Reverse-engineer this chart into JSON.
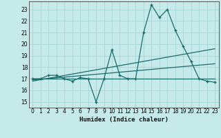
{
  "xlabel": "Humidex (Indice chaleur)",
  "ylabel": "",
  "bg_color": "#c6eaea",
  "line_color": "#1a6b6b",
  "grid_color": "#a8d4d4",
  "xlim": [
    -0.5,
    23.5
  ],
  "ylim": [
    14.5,
    23.7
  ],
  "xticks": [
    0,
    1,
    2,
    3,
    4,
    5,
    6,
    7,
    8,
    9,
    10,
    11,
    12,
    13,
    14,
    15,
    16,
    17,
    18,
    19,
    20,
    21,
    22,
    23
  ],
  "yticks": [
    15,
    16,
    17,
    18,
    19,
    20,
    21,
    22,
    23
  ],
  "x_data": [
    0,
    1,
    2,
    3,
    4,
    5,
    6,
    7,
    8,
    9,
    10,
    11,
    12,
    13,
    14,
    15,
    16,
    17,
    18,
    19,
    20,
    21,
    22,
    23
  ],
  "y_data": [
    17.0,
    17.0,
    17.3,
    17.3,
    17.0,
    16.8,
    17.1,
    17.0,
    15.0,
    17.0,
    19.5,
    17.3,
    17.0,
    17.0,
    21.0,
    23.4,
    22.3,
    23.0,
    21.2,
    19.8,
    18.5,
    17.0,
    16.8,
    16.7
  ],
  "trend1_x": [
    0,
    23
  ],
  "trend1_y": [
    17.0,
    17.0
  ],
  "trend2_x": [
    0,
    23
  ],
  "trend2_y": [
    16.9,
    18.3
  ],
  "trend3_x": [
    0,
    23
  ],
  "trend3_y": [
    16.8,
    19.6
  ]
}
